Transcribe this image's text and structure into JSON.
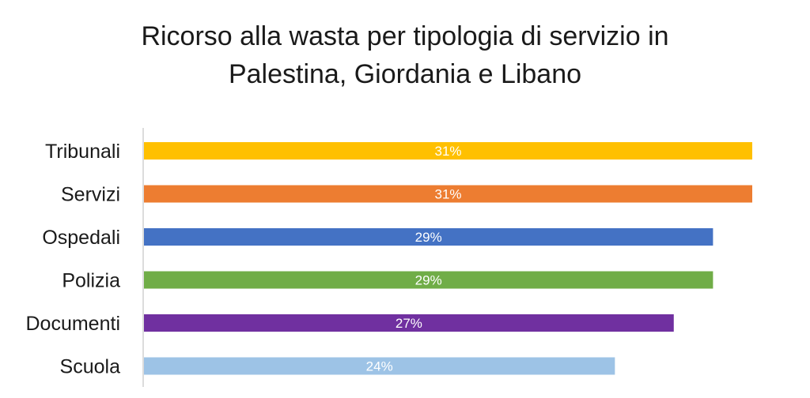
{
  "chart_data": {
    "type": "bar",
    "orientation": "horizontal",
    "title_lines": [
      "Ricorso alla wasta per tipologia di servizio in",
      "Palestina, Giordania e Libano"
    ],
    "categories": [
      "Tribunali",
      "Servizi",
      "Ospedali",
      "Polizia",
      "Documenti",
      "Scuola"
    ],
    "values": [
      31,
      31,
      29,
      29,
      27,
      24
    ],
    "value_labels": [
      "31%",
      "31%",
      "29%",
      "29%",
      "27%",
      "24%"
    ],
    "unit": "%",
    "colors": [
      "#FFC000",
      "#ED7D31",
      "#4472C4",
      "#70AD47",
      "#7030A0",
      "#9DC3E6"
    ],
    "xlim": [
      0,
      31
    ],
    "grid": false,
    "legend": "none"
  }
}
